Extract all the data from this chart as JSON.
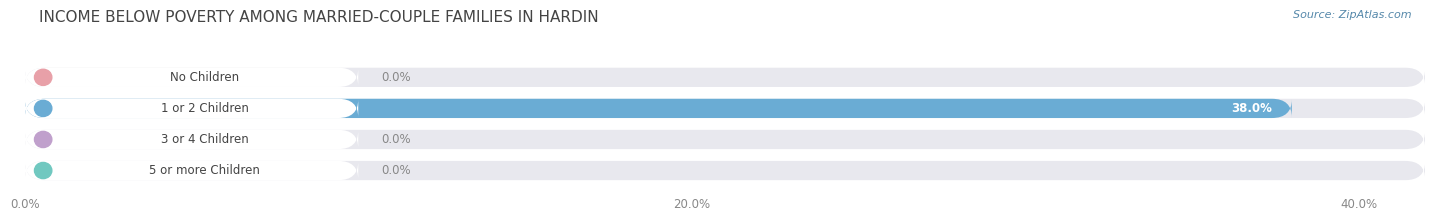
{
  "title": "INCOME BELOW POVERTY AMONG MARRIED-COUPLE FAMILIES IN HARDIN",
  "source": "Source: ZipAtlas.com",
  "categories": [
    "No Children",
    "1 or 2 Children",
    "3 or 4 Children",
    "5 or more Children"
  ],
  "values": [
    0.0,
    38.0,
    0.0,
    0.0
  ],
  "bar_colors": [
    "#e8a0a8",
    "#6aacd4",
    "#c0a0cc",
    "#70c8c0"
  ],
  "xlim_data": 42.0,
  "xticks": [
    0.0,
    20.0,
    40.0
  ],
  "xticklabels": [
    "0.0%",
    "20.0%",
    "40.0%"
  ],
  "bg_color": "#ffffff",
  "bar_bg_color": "#e8e8ee",
  "grid_color": "#ffffff",
  "title_color": "#444444",
  "source_color": "#5588aa",
  "tick_color": "#888888",
  "value_color_inside": "#ffffff",
  "value_color_outside": "#888888",
  "title_fontsize": 11,
  "source_fontsize": 8,
  "label_fontsize": 8.5,
  "value_fontsize": 8.5,
  "tick_fontsize": 8.5
}
